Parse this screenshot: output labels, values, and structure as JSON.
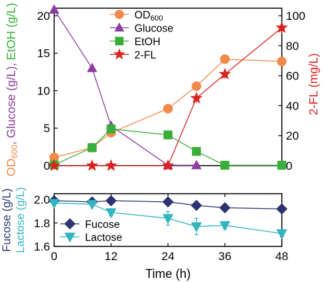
{
  "colors": {
    "od600": "#f08a4b",
    "glucose": "#8e3d9e",
    "etoh": "#3aae3a",
    "fl2": "#d8231f",
    "fucose": "#2b3470",
    "lactose": "#33b5bf",
    "axis": "#000000"
  },
  "chart_data": [
    {
      "type": "line",
      "panel": "top",
      "x": [
        0,
        8,
        12,
        24,
        30,
        36,
        48
      ],
      "xlim": [
        0,
        48
      ],
      "xticks": [
        0,
        12,
        24,
        36,
        48
      ],
      "ylim_left": [
        0,
        21
      ],
      "yticks_left": [
        0,
        5,
        10,
        15,
        20
      ],
      "ylim_right": [
        0,
        105
      ],
      "yticks_right": [
        0,
        20,
        40,
        60,
        80,
        100
      ],
      "ylabel_left": {
        "od_prefix": "OD",
        "od_sub": "600",
        "glucose": ", Glucose (g/L),",
        "etoh": "EtOH (g/L)"
      },
      "ylabel_right": "2-FL (mg/L)",
      "legend_position": "top-center",
      "grid": false,
      "series": [
        {
          "name": "OD",
          "name_sub": "600",
          "axis": "left",
          "marker": "circle",
          "points": [
            [
              0,
              1.1
            ],
            [
              8,
              2.4
            ],
            [
              12,
              4.4
            ],
            [
              24,
              7.6
            ],
            [
              30,
              10.6
            ],
            [
              36,
              14.2
            ],
            [
              48,
              13.9
            ]
          ]
        },
        {
          "name": "Glucose",
          "axis": "left",
          "marker": "triangle-up",
          "points": [
            [
              0,
              20.8
            ],
            [
              8,
              13.0
            ],
            [
              12,
              5.3
            ],
            [
              24,
              0.05
            ],
            [
              30,
              0.05
            ]
          ]
        },
        {
          "name": "EtOH",
          "axis": "left",
          "marker": "square",
          "points": [
            [
              0,
              0.1
            ],
            [
              8,
              2.4
            ],
            [
              12,
              4.9
            ],
            [
              24,
              4.1
            ],
            [
              30,
              1.9
            ],
            [
              36,
              0.05
            ],
            [
              48,
              0.05
            ]
          ]
        },
        {
          "name": "2-FL",
          "axis": "right",
          "marker": "star",
          "points": [
            [
              0,
              0
            ],
            [
              8,
              0
            ],
            [
              12,
              0
            ],
            [
              24,
              0
            ],
            [
              30,
              45
            ],
            [
              36,
              61
            ],
            [
              48,
              92
            ]
          ],
          "errors": [
            0,
            0,
            0,
            0,
            3,
            3,
            4
          ]
        }
      ]
    },
    {
      "type": "line",
      "panel": "bottom",
      "x": [
        0,
        8,
        12,
        24,
        30,
        36,
        48
      ],
      "xlim": [
        0,
        48
      ],
      "xticks": [
        0,
        12,
        24,
        36,
        48
      ],
      "xlabel": "Time (h)",
      "ylim": [
        1.6,
        2.05
      ],
      "yticks": [
        1.6,
        1.8,
        2.0
      ],
      "ylabel": {
        "fucose": "Fucose (g/L)",
        "lactose": "Lactose (g/L)"
      },
      "legend_position": "bottom-left",
      "grid": false,
      "series": [
        {
          "name": "Fucose",
          "marker": "diamond",
          "points": [
            [
              0,
              1.99
            ],
            [
              8,
              1.98
            ],
            [
              12,
              1.99
            ],
            [
              24,
              1.98
            ],
            [
              30,
              1.95
            ],
            [
              36,
              1.93
            ],
            [
              48,
              1.92
            ]
          ]
        },
        {
          "name": "Lactose",
          "marker": "triangle-down",
          "points": [
            [
              0,
              1.97
            ],
            [
              8,
              1.96
            ],
            [
              12,
              1.89
            ],
            [
              24,
              1.84
            ],
            [
              30,
              1.77
            ],
            [
              36,
              1.78
            ],
            [
              48,
              1.71
            ]
          ],
          "errors": [
            0.01,
            0.01,
            0.03,
            0.06,
            0.07,
            0.03,
            0.03
          ]
        }
      ]
    }
  ]
}
